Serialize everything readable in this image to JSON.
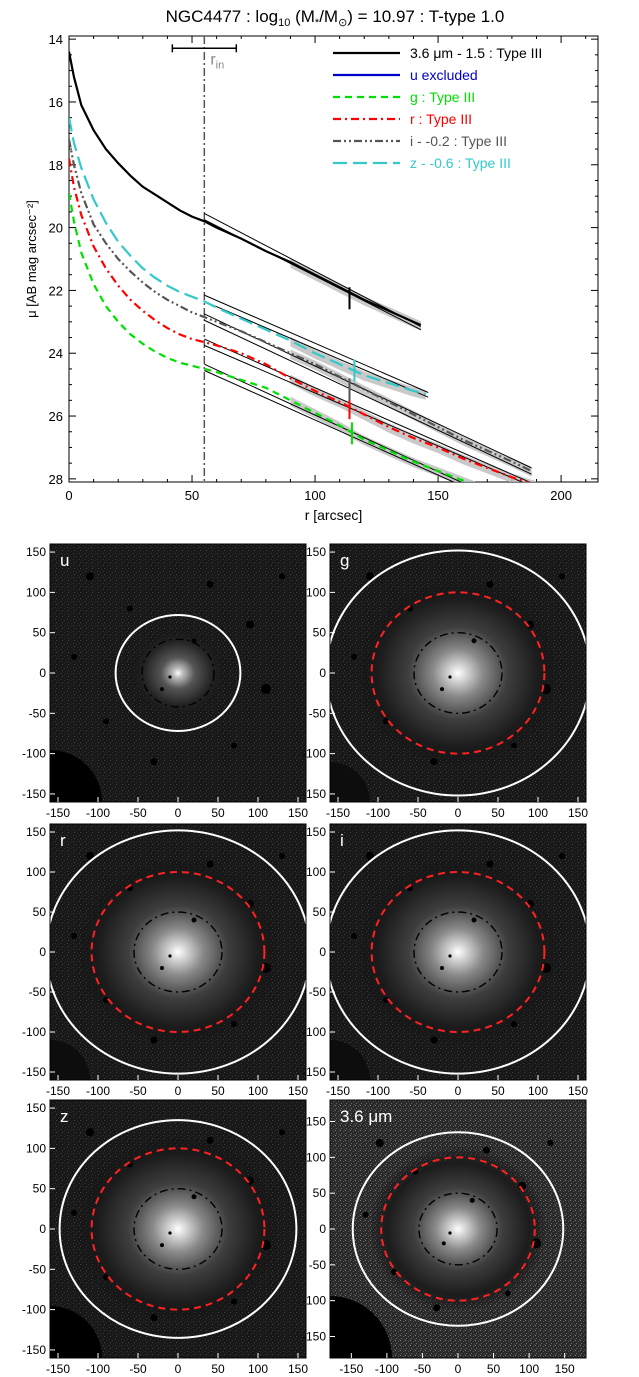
{
  "chart_data": [
    {
      "type": "line",
      "title": "NGC4477 : log₁₀ (M∗/M⊙) = 10.97 : T-type 1.0",
      "title_parts": {
        "pre": "NGC4477 : log",
        "sub": "10",
        "mid": " (M",
        "sub2": "*",
        "mid2": "/M",
        "sub3": "⊙",
        "post": ") = 10.97 : T-type 1.0"
      },
      "xlabel": "r [arcsec]",
      "ylabel": "μ [AB mag arcsec⁻²]",
      "xlim": [
        0,
        215
      ],
      "ylim": [
        28.1,
        13.9
      ],
      "y_inverted": true,
      "x_ticks": [
        0,
        50,
        100,
        150,
        200
      ],
      "y_ticks": [
        14,
        16,
        18,
        20,
        22,
        24,
        26,
        28
      ],
      "r_in": {
        "label": "r",
        "label_sub": "in",
        "value": 55,
        "error": [
          42,
          68
        ],
        "error_y": 14.1
      },
      "legend_position": "top-right",
      "series": [
        {
          "name": "3.6 μm - 1.5 : Type III",
          "color": "#000000",
          "dash": "solid",
          "width": 2.2,
          "x": [
            0,
            2,
            5,
            10,
            15,
            20,
            25,
            30,
            35,
            40,
            45,
            50,
            55,
            60,
            70,
            80,
            90,
            100,
            110,
            120,
            130,
            140,
            143
          ],
          "y": [
            14.4,
            15.2,
            16.1,
            16.9,
            17.5,
            17.95,
            18.35,
            18.7,
            18.95,
            19.2,
            19.45,
            19.65,
            19.8,
            20.0,
            20.35,
            20.75,
            21.1,
            21.5,
            21.9,
            22.3,
            22.65,
            23.0,
            23.1
          ],
          "fits": [
            {
              "x": [
                55,
                143
              ],
              "y": [
                19.55,
                23.15
              ]
            },
            {
              "x": [
                55,
                143
              ],
              "y": [
                19.75,
                23.25
              ]
            }
          ],
          "break_marker": {
            "x": 114,
            "y": 22.25
          }
        },
        {
          "name": "u excluded",
          "color": "#0000cc",
          "dash": "solid",
          "width": 2.2,
          "x": [],
          "y": []
        },
        {
          "name": "g : Type III",
          "color": "#00e000",
          "dash": "dashed",
          "width": 2.2,
          "x": [
            0,
            2,
            5,
            10,
            15,
            20,
            25,
            30,
            35,
            40,
            45,
            50,
            55,
            60,
            70,
            80,
            90,
            100,
            110,
            120,
            130,
            140,
            150,
            160,
            165
          ],
          "y": [
            18.9,
            19.8,
            20.8,
            21.8,
            22.5,
            23.0,
            23.4,
            23.7,
            23.95,
            24.15,
            24.3,
            24.4,
            24.5,
            24.6,
            24.85,
            25.1,
            25.5,
            25.9,
            26.3,
            26.75,
            27.1,
            27.45,
            27.75,
            28.05,
            28.2
          ],
          "fits": [
            {
              "x": [
                55,
                162
              ],
              "y": [
                24.35,
                28.2
              ]
            },
            {
              "x": [
                55,
                162
              ],
              "y": [
                24.55,
                28.3
              ]
            }
          ],
          "break_marker": {
            "x": 115,
            "y": 26.55
          }
        },
        {
          "name": "r : Type III",
          "color": "#ff0000",
          "dash": "dashdot",
          "width": 2.2,
          "x": [
            0,
            2,
            5,
            10,
            15,
            20,
            25,
            30,
            35,
            40,
            45,
            50,
            55,
            60,
            70,
            80,
            90,
            100,
            110,
            120,
            130,
            140,
            150,
            160,
            170,
            180,
            190
          ],
          "y": [
            17.8,
            18.7,
            19.6,
            20.6,
            21.3,
            21.85,
            22.3,
            22.65,
            22.95,
            23.2,
            23.4,
            23.55,
            23.65,
            23.75,
            24.0,
            24.35,
            24.8,
            25.2,
            25.55,
            25.95,
            26.35,
            26.7,
            27.0,
            27.35,
            27.65,
            27.95,
            28.2
          ],
          "fits": [
            {
              "x": [
                55,
                190
              ],
              "y": [
                23.55,
                28.2
              ]
            },
            {
              "x": [
                55,
                190
              ],
              "y": [
                23.75,
                28.3
              ]
            }
          ],
          "break_marker": {
            "x": 114,
            "y": 25.75
          }
        },
        {
          "name": "i - -0.2 : Type III",
          "color": "#555555",
          "dash": "dashdotdot",
          "width": 2.2,
          "x": [
            0,
            2,
            5,
            10,
            15,
            20,
            25,
            30,
            35,
            40,
            45,
            50,
            55,
            60,
            70,
            80,
            90,
            100,
            110,
            120,
            130,
            140,
            150,
            160,
            170,
            180,
            188
          ],
          "y": [
            17.2,
            18.0,
            18.9,
            19.9,
            20.5,
            21.0,
            21.4,
            21.75,
            22.05,
            22.3,
            22.5,
            22.7,
            22.85,
            23.0,
            23.3,
            23.65,
            24.0,
            24.35,
            24.75,
            25.15,
            25.55,
            25.95,
            26.35,
            26.75,
            27.1,
            27.45,
            27.75
          ],
          "fits": [
            {
              "x": [
                55,
                188
              ],
              "y": [
                22.75,
                27.65
              ]
            },
            {
              "x": [
                55,
                188
              ],
              "y": [
                22.95,
                27.85
              ]
            }
          ],
          "break_marker": {
            "x": 114,
            "y": 25.15
          }
        },
        {
          "name": "z - -0.6 : Type III",
          "color": "#33c9c9",
          "dash": "longdash",
          "width": 2.2,
          "x": [
            0,
            2,
            5,
            10,
            15,
            20,
            25,
            30,
            35,
            40,
            45,
            50,
            55,
            60,
            70,
            80,
            90,
            100,
            110,
            120,
            130,
            140,
            145
          ],
          "y": [
            16.5,
            17.3,
            18.1,
            19.1,
            19.85,
            20.45,
            20.9,
            21.3,
            21.6,
            21.85,
            22.05,
            22.2,
            22.35,
            22.55,
            22.9,
            23.25,
            23.6,
            24.0,
            24.35,
            24.7,
            24.95,
            25.2,
            25.3
          ],
          "fits": [
            {
              "x": [
                55,
                146
              ],
              "y": [
                22.15,
                25.25
              ]
            },
            {
              "x": [
                55,
                146
              ],
              "y": [
                22.35,
                25.4
              ]
            }
          ],
          "break_marker": {
            "x": 116,
            "y": 24.55
          }
        }
      ]
    },
    {
      "type": "heatmap",
      "panels": [
        {
          "label": "u",
          "xlim": [
            -160,
            160
          ],
          "ylim": [
            -160,
            160
          ],
          "x_ticks": [
            -150,
            -100,
            -50,
            0,
            50,
            100,
            150
          ],
          "y_ticks": [
            -150,
            -100,
            -50,
            0,
            50,
            100,
            150
          ],
          "ellipses": [
            {
              "kind": "outer",
              "color": "#ffffff",
              "dash": "solid",
              "rx": 78,
              "ry": 72
            },
            {
              "kind": "inner",
              "color": "#000000",
              "dash": "dashdot",
              "rx": 45,
              "ry": 42
            }
          ]
        },
        {
          "label": "g",
          "xlim": [
            -160,
            160
          ],
          "ylim": [
            -160,
            160
          ],
          "x_ticks": [
            -150,
            -100,
            -50,
            0,
            50,
            100,
            150
          ],
          "y_ticks": [
            -150,
            -100,
            -50,
            0,
            50,
            100,
            150
          ],
          "ellipses": [
            {
              "kind": "outer",
              "color": "#ffffff",
              "dash": "solid",
              "rx": 165,
              "ry": 152
            },
            {
              "kind": "mid",
              "color": "#ff2222",
              "dash": "dashed",
              "rx": 108,
              "ry": 100
            },
            {
              "kind": "inner",
              "color": "#000000",
              "dash": "dashdot",
              "rx": 55,
              "ry": 50
            }
          ]
        },
        {
          "label": "r",
          "xlim": [
            -160,
            160
          ],
          "ylim": [
            -160,
            160
          ],
          "x_ticks": [
            -150,
            -100,
            -50,
            0,
            50,
            100,
            150
          ],
          "y_ticks": [
            -150,
            -100,
            -50,
            0,
            50,
            100,
            150
          ],
          "ellipses": [
            {
              "kind": "outer",
              "color": "#ffffff",
              "dash": "solid",
              "rx": 165,
              "ry": 152
            },
            {
              "kind": "mid",
              "color": "#ff2222",
              "dash": "dashed",
              "rx": 108,
              "ry": 100
            },
            {
              "kind": "inner",
              "color": "#000000",
              "dash": "dashdot",
              "rx": 55,
              "ry": 50
            }
          ]
        },
        {
          "label": "i",
          "xlim": [
            -160,
            160
          ],
          "ylim": [
            -160,
            160
          ],
          "x_ticks": [
            -150,
            -100,
            -50,
            0,
            50,
            100,
            150
          ],
          "y_ticks": [
            -150,
            -100,
            -50,
            0,
            50,
            100,
            150
          ],
          "ellipses": [
            {
              "kind": "outer",
              "color": "#ffffff",
              "dash": "solid",
              "rx": 165,
              "ry": 152
            },
            {
              "kind": "mid",
              "color": "#ff2222",
              "dash": "dashed",
              "rx": 108,
              "ry": 100
            },
            {
              "kind": "inner",
              "color": "#000000",
              "dash": "dashdot",
              "rx": 55,
              "ry": 50
            }
          ]
        },
        {
          "label": "z",
          "xlim": [
            -160,
            160
          ],
          "ylim": [
            -160,
            160
          ],
          "x_ticks": [
            -150,
            -100,
            -50,
            0,
            50,
            100,
            150
          ],
          "y_ticks": [
            -150,
            -100,
            -50,
            0,
            50,
            100,
            150
          ],
          "ellipses": [
            {
              "kind": "outer",
              "color": "#ffffff",
              "dash": "solid",
              "rx": 148,
              "ry": 135
            },
            {
              "kind": "mid",
              "color": "#ff2222",
              "dash": "dashed",
              "rx": 108,
              "ry": 100
            },
            {
              "kind": "inner",
              "color": "#000000",
              "dash": "dashdot",
              "rx": 55,
              "ry": 50
            }
          ]
        },
        {
          "label": "3.6 μm",
          "xlim": [
            -180,
            180
          ],
          "ylim": [
            -180,
            180
          ],
          "x_ticks": [
            -150,
            -100,
            -50,
            0,
            50,
            100,
            150
          ],
          "x_tick_labels": [
            "-150",
            "-100",
            "-50",
            "0",
            "50",
            "100",
            "150"
          ],
          "y_ticks": [
            -150,
            -100,
            -50,
            0,
            50,
            100,
            150
          ],
          "ellipses": [
            {
              "kind": "outer",
              "color": "#ffffff",
              "dash": "solid",
              "rx": 148,
              "ry": 135
            },
            {
              "kind": "mid",
              "color": "#ff2222",
              "dash": "dashed",
              "rx": 108,
              "ry": 100
            },
            {
              "kind": "inner",
              "color": "#000000",
              "dash": "dashdot",
              "rx": 55,
              "ry": 50
            }
          ]
        }
      ]
    }
  ]
}
